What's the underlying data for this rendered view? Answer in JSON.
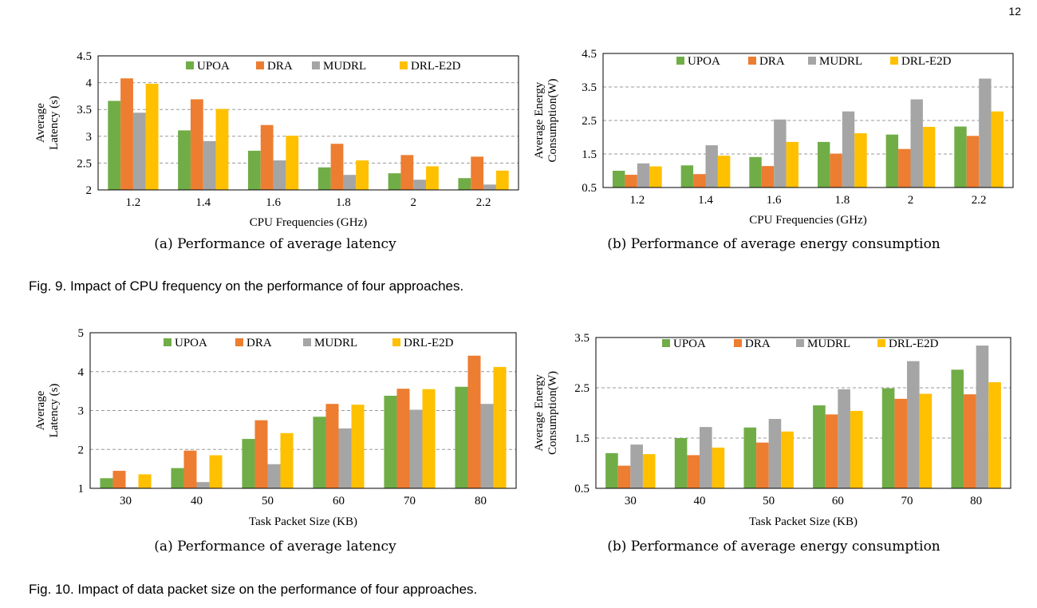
{
  "page_number": "12",
  "colors": {
    "UPOA": "#70ad47",
    "DRA": "#ed7d31",
    "MUDRL": "#a5a5a5",
    "DRL-E2D": "#ffc000"
  },
  "figures": [
    {
      "caption": "Fig. 9. Impact of CPU frequency on the performance of four approaches.",
      "subcaptions": [
        "(a)  Performance of average latency",
        "(b)  Performance of average energy consumption"
      ]
    },
    {
      "caption": "Fig. 10. Impact of data packet size on the performance of four approaches.",
      "subcaptions": [
        "(a)  Performance of average latency",
        "(b)  Performance of average energy consumption"
      ]
    }
  ],
  "chart_data": [
    {
      "type": "bar",
      "categories": [
        "1.2",
        "1.4",
        "1.6",
        "1.8",
        "2",
        "2.2"
      ],
      "xlabel": "CPU Frequencies (GHz)",
      "ylabel": [
        "Average",
        "Latency (s)"
      ],
      "ylim": [
        2,
        4.5
      ],
      "yticks": [
        "2",
        "2.5",
        "3",
        "3.5",
        "4",
        "4.5"
      ],
      "grid": true,
      "legend": "top",
      "series": [
        {
          "name": "UPOA",
          "values": [
            3.66,
            3.11,
            2.73,
            2.42,
            2.31,
            2.22
          ]
        },
        {
          "name": "DRA",
          "values": [
            4.08,
            3.69,
            3.21,
            2.86,
            2.65,
            2.62
          ]
        },
        {
          "name": "MUDRL",
          "values": [
            3.44,
            2.91,
            2.55,
            2.28,
            2.19,
            2.1
          ]
        },
        {
          "name": "DRL-E2D",
          "values": [
            3.98,
            3.51,
            3.01,
            2.55,
            2.44,
            2.36
          ]
        }
      ]
    },
    {
      "type": "bar",
      "categories": [
        "1.2",
        "1.4",
        "1.6",
        "1.8",
        "2",
        "2.2"
      ],
      "xlabel": "CPU Frequencies (GHz)",
      "ylabel": [
        "Average Energy",
        "Consumption(W)"
      ],
      "ylim": [
        0.5,
        4.5
      ],
      "yticks": [
        "0.5",
        "1.5",
        "2.5",
        "3.5",
        "4.5"
      ],
      "grid": true,
      "legend": "top",
      "series": [
        {
          "name": "UPOA",
          "values": [
            1.0,
            1.16,
            1.41,
            1.86,
            2.08,
            2.32
          ]
        },
        {
          "name": "DRA",
          "values": [
            0.88,
            0.9,
            1.14,
            1.51,
            1.65,
            2.04
          ]
        },
        {
          "name": "MUDRL",
          "values": [
            1.22,
            1.76,
            2.53,
            2.77,
            3.13,
            3.75
          ]
        },
        {
          "name": "DRL-E2D",
          "values": [
            1.13,
            1.45,
            1.86,
            2.12,
            2.31,
            2.77
          ]
        }
      ]
    },
    {
      "type": "bar",
      "categories": [
        "30",
        "40",
        "50",
        "60",
        "70",
        "80"
      ],
      "xlabel": "Task Packet Size (KB)",
      "ylabel": [
        "Average",
        "Latency (s)"
      ],
      "ylim": [
        1,
        5
      ],
      "yticks": [
        "1",
        "2",
        "3",
        "4",
        "5"
      ],
      "grid": true,
      "legend": "top",
      "series": [
        {
          "name": "UPOA",
          "values": [
            1.26,
            1.52,
            2.27,
            2.84,
            3.38,
            3.61
          ]
        },
        {
          "name": "DRA",
          "values": [
            1.45,
            1.97,
            2.75,
            3.17,
            3.56,
            4.41
          ]
        },
        {
          "name": "MUDRL",
          "values": [
            1.03,
            1.16,
            1.62,
            2.54,
            3.02,
            3.17
          ]
        },
        {
          "name": "DRL-E2D",
          "values": [
            1.36,
            1.85,
            2.42,
            3.15,
            3.55,
            4.12
          ]
        }
      ]
    },
    {
      "type": "bar",
      "categories": [
        "30",
        "40",
        "50",
        "60",
        "70",
        "80"
      ],
      "xlabel": "Task Packet Size (KB)",
      "ylabel": [
        "Average Energy",
        "Consumption(W)"
      ],
      "ylim": [
        0.5,
        3.5
      ],
      "yticks": [
        "0.5",
        "1.5",
        "2.5",
        "3.5"
      ],
      "grid": true,
      "legend": "top",
      "series": [
        {
          "name": "UPOA",
          "values": [
            1.2,
            1.5,
            1.71,
            2.15,
            2.49,
            2.86
          ]
        },
        {
          "name": "DRA",
          "values": [
            0.95,
            1.16,
            1.41,
            1.97,
            2.28,
            2.37
          ]
        },
        {
          "name": "MUDRL",
          "values": [
            1.37,
            1.72,
            1.88,
            2.47,
            3.03,
            3.34
          ]
        },
        {
          "name": "DRL-E2D",
          "values": [
            1.18,
            1.31,
            1.63,
            2.04,
            2.38,
            2.61
          ]
        }
      ]
    }
  ]
}
